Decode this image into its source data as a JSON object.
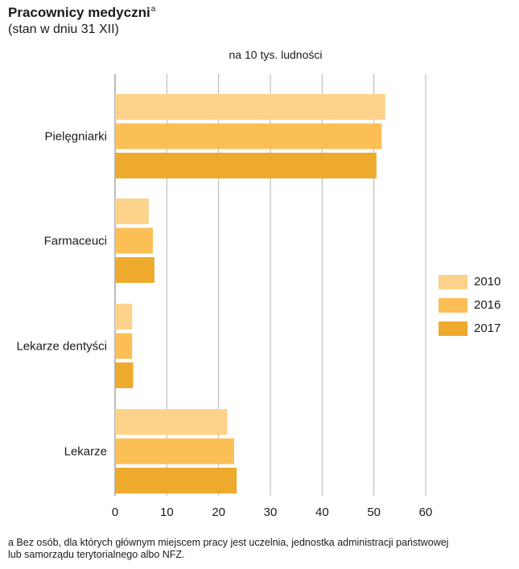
{
  "title": "Pracownicy medyczni",
  "title_sup": "a",
  "subtitle": "(stan w dniu 31 XII)",
  "unit_label": "na 10 tys. ludności",
  "footnote_line1": "a Bez osób, dla których głównym miejscem pracy jest uczelnia, jednostka administracji państwowej",
  "footnote_line2": "lub samorządu terytorialnego albo NFZ.",
  "chart_data": {
    "type": "bar",
    "orientation": "horizontal",
    "categories": [
      "Pielęgniarki",
      "Farmaceuci",
      "Lekarze dentyści",
      "Lekarze"
    ],
    "series": [
      {
        "name": "2010",
        "color": "#fdd28a",
        "values": [
          52.2,
          6.5,
          3.3,
          21.7
        ]
      },
      {
        "name": "2016",
        "color": "#fbbf56",
        "values": [
          51.5,
          7.3,
          3.3,
          23.0
        ]
      },
      {
        "name": "2017",
        "color": "#eeaa2d",
        "values": [
          50.5,
          7.6,
          3.5,
          23.5
        ]
      }
    ],
    "xlim": [
      0,
      60
    ],
    "xticks": [
      0,
      10,
      20,
      30,
      40,
      50,
      60
    ],
    "grid": "vertical",
    "legend_position": "right"
  }
}
